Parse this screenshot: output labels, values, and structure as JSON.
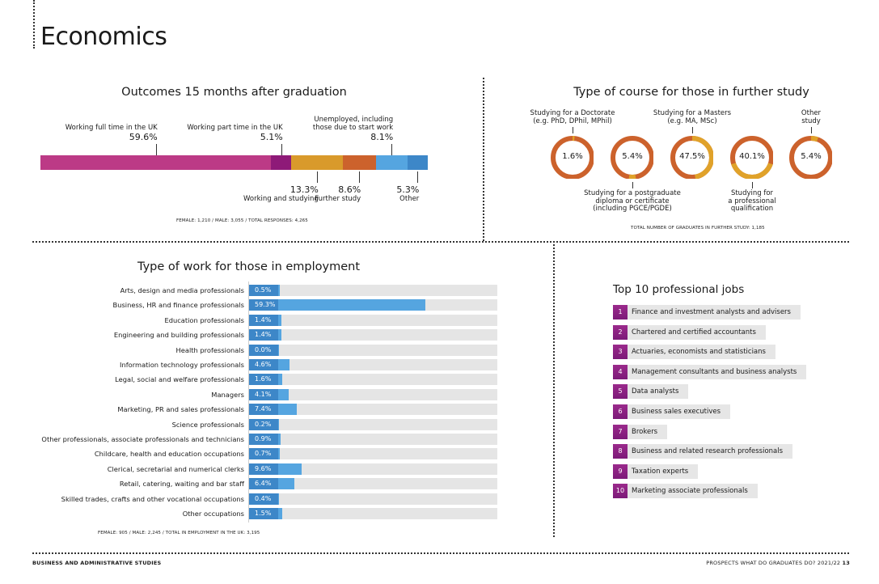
{
  "page": {
    "title": "Economics",
    "footer_left": "BUSINESS AND ADMINISTRATIVE STUDIES",
    "footer_right": "PROSPECTS WHAT DO GRADUATES DO? 2021/22",
    "page_number": "13"
  },
  "chart_data": [
    {
      "type": "bar",
      "orientation": "horizontal-stacked",
      "title": "Outcomes 15 months after graduation",
      "categories": [
        "Working full time in the UK",
        "Working part time in the UK",
        "Working and studying",
        "Further study",
        "Unemployed, including those due to start work",
        "Other"
      ],
      "values": [
        59.6,
        5.1,
        13.3,
        8.6,
        8.1,
        5.3
      ],
      "value_labels": [
        "59.6%",
        "5.1%",
        "13.3%",
        "8.6%",
        "8.1%",
        "5.3%"
      ],
      "label_positions": [
        "above",
        "above",
        "below",
        "below",
        "above",
        "below"
      ],
      "colors": [
        "#bc3a86",
        "#8e1a78",
        "#d99a2b",
        "#cc622c",
        "#55a5e0",
        "#3d87c8"
      ],
      "footnote": "FEMALE: 1,210 / MALE: 3,055 / TOTAL RESPONSES: 4,265"
    },
    {
      "type": "pie",
      "variant": "donut-set",
      "title": "Type of course for those in further study",
      "categories": [
        "Studying for a Doctorate (e.g. PhD, DPhil, MPhil)",
        "Studying for a postgraduate diploma or certificate (including PGCE/PGDE)",
        "Studying for a Masters (e.g. MA, MSc)",
        "Studying for a professional qualification",
        "Other study"
      ],
      "label_lines": [
        [
          "Studying for a Doctorate",
          "(e.g. PhD, DPhil, MPhil)"
        ],
        [
          "Studying for a postgraduate",
          "diploma or certificate",
          "(including PGCE/PGDE)"
        ],
        [
          "Studying for a Masters",
          "(e.g. MA, MSc)"
        ],
        [
          "Studying for",
          "a professional",
          "qualification"
        ],
        [
          "Other",
          "study"
        ]
      ],
      "label_positions": [
        "above",
        "below",
        "above",
        "below",
        "above"
      ],
      "values": [
        1.6,
        5.4,
        47.5,
        40.1,
        5.4
      ],
      "value_labels": [
        "1.6%",
        "5.4%",
        "47.5%",
        "40.1%",
        "5.4%"
      ],
      "colors": {
        "highlight": "#e0a22a",
        "remainder": "#cc622c"
      },
      "footnote": "TOTAL NUMBER OF GRADUATES IN FURTHER STUDY: 1,185"
    },
    {
      "type": "bar",
      "orientation": "horizontal",
      "title": "Type of work for those in employment",
      "categories": [
        "Arts, design and media professionals",
        "Business, HR and finance professionals",
        "Education professionals",
        "Engineering and building professionals",
        "Health professionals",
        "Information technology professionals",
        "Legal, social and welfare professionals",
        "Managers",
        "Marketing, PR and sales professionals",
        "Science professionals",
        "Other professionals, associate professionals and technicians",
        "Childcare, health and education occupations",
        "Clerical, secretarial and numerical clerks",
        "Retail, catering, waiting and bar staff",
        "Skilled trades, crafts and other vocational occupations",
        "Other occupations"
      ],
      "values": [
        0.5,
        59.3,
        1.4,
        1.4,
        0.0,
        4.6,
        1.6,
        4.1,
        7.4,
        0.2,
        0.9,
        0.7,
        9.6,
        6.4,
        0.4,
        1.5
      ],
      "value_labels": [
        "0.5%",
        "59.3%",
        "1.4%",
        "1.4%",
        "0.0%",
        "4.6%",
        "1.6%",
        "4.1%",
        "7.4%",
        "0.2%",
        "0.9%",
        "0.7%",
        "9.6%",
        "6.4%",
        "0.4%",
        "1.5%"
      ],
      "xlim": [
        0,
        100
      ],
      "colors": {
        "bar": "#55a5e0",
        "label_cap": "#3d87c8",
        "track": "#e5e5e5"
      },
      "footnote": "FEMALE: 905 / MALE: 2,245 / TOTAL IN EMPLOYMENT IN THE UK: 3,195"
    }
  ],
  "top_jobs": {
    "title": "Top 10 professional jobs",
    "items": [
      {
        "rank": "1",
        "label": "Finance and investment analysts and advisers"
      },
      {
        "rank": "2",
        "label": "Chartered and certified accountants"
      },
      {
        "rank": "3",
        "label": "Actuaries, economists and statisticians"
      },
      {
        "rank": "4",
        "label": "Management consultants and business analysts"
      },
      {
        "rank": "5",
        "label": "Data analysts"
      },
      {
        "rank": "6",
        "label": "Business sales executives"
      },
      {
        "rank": "7",
        "label": "Brokers"
      },
      {
        "rank": "8",
        "label": "Business and related research professionals"
      },
      {
        "rank": "9",
        "label": "Taxation experts"
      },
      {
        "rank": "10",
        "label": "Marketing associate professionals"
      }
    ]
  }
}
